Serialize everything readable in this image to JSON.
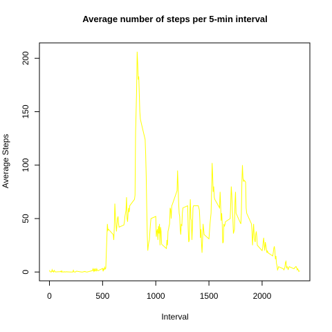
{
  "chart_data": {
    "type": "line",
    "title": "Average number of steps per 5-min interval",
    "x_label": "Interval",
    "y_label": "Average Steps",
    "x": [
      0,
      5,
      10,
      15,
      20,
      25,
      30,
      35,
      40,
      45,
      50,
      55,
      100,
      105,
      110,
      115,
      120,
      125,
      130,
      135,
      140,
      145,
      150,
      155,
      200,
      205,
      210,
      215,
      220,
      225,
      230,
      235,
      240,
      245,
      250,
      255,
      300,
      305,
      310,
      315,
      320,
      325,
      330,
      335,
      340,
      345,
      350,
      355,
      400,
      405,
      410,
      415,
      420,
      425,
      430,
      435,
      440,
      445,
      450,
      455,
      500,
      505,
      510,
      515,
      520,
      525,
      530,
      535,
      540,
      545,
      550,
      555,
      600,
      605,
      610,
      615,
      620,
      625,
      630,
      635,
      640,
      645,
      650,
      655,
      700,
      705,
      710,
      715,
      720,
      725,
      730,
      735,
      740,
      745,
      750,
      755,
      800,
      805,
      810,
      815,
      820,
      825,
      830,
      835,
      840,
      845,
      850,
      855,
      900,
      905,
      910,
      915,
      920,
      925,
      930,
      935,
      940,
      945,
      950,
      955,
      1000,
      1005,
      1010,
      1015,
      1020,
      1025,
      1030,
      1035,
      1040,
      1045,
      1050,
      1055,
      1100,
      1105,
      1110,
      1115,
      1120,
      1125,
      1130,
      1135,
      1140,
      1145,
      1150,
      1155,
      1200,
      1205,
      1210,
      1215,
      1220,
      1225,
      1230,
      1235,
      1240,
      1245,
      1250,
      1255,
      1300,
      1305,
      1310,
      1315,
      1320,
      1325,
      1330,
      1335,
      1340,
      1345,
      1350,
      1355,
      1400,
      1405,
      1410,
      1415,
      1420,
      1425,
      1430,
      1435,
      1440,
      1445,
      1450,
      1455,
      1500,
      1505,
      1510,
      1515,
      1520,
      1525,
      1530,
      1535,
      1540,
      1545,
      1550,
      1555,
      1600,
      1605,
      1610,
      1615,
      1620,
      1625,
      1630,
      1635,
      1640,
      1645,
      1650,
      1655,
      1700,
      1705,
      1710,
      1715,
      1720,
      1725,
      1730,
      1735,
      1740,
      1745,
      1750,
      1755,
      1800,
      1805,
      1810,
      1815,
      1820,
      1825,
      1830,
      1835,
      1840,
      1845,
      1850,
      1855,
      1900,
      1905,
      1910,
      1915,
      1920,
      1925,
      1930,
      1935,
      1940,
      1945,
      1950,
      1955,
      2000,
      2005,
      2010,
      2015,
      2020,
      2025,
      2030,
      2035,
      2040,
      2045,
      2050,
      2055,
      2100,
      2105,
      2110,
      2115,
      2120,
      2125,
      2130,
      2135,
      2140,
      2145,
      2150,
      2155,
      2200,
      2205,
      2210,
      2215,
      2220,
      2225,
      2230,
      2235,
      2240,
      2245,
      2250,
      2255,
      2300,
      2305,
      2310,
      2315,
      2320,
      2325,
      2330,
      2335,
      2340,
      2345,
      2350,
      2355
    ],
    "series": [
      {
        "name": "Average Steps",
        "color": "#ffff00",
        "values": [
          1.7,
          0.3,
          0.1,
          0.2,
          0.1,
          2.1,
          0.5,
          0.9,
          0,
          1.5,
          0.8,
          0.1,
          0.3,
          0.7,
          0,
          1.1,
          0,
          0.1,
          0,
          0,
          0.4,
          0,
          0,
          0.2,
          0,
          0,
          0,
          0,
          0,
          1.6,
          0.2,
          0,
          0.1,
          0,
          0.5,
          0.8,
          0,
          0,
          0,
          0,
          0.2,
          0.5,
          0.3,
          0.6,
          0.2,
          0.1,
          0,
          0,
          1.2,
          1.6,
          3,
          0.8,
          2.5,
          0.5,
          3.3,
          1.5,
          1,
          3,
          1.8,
          1.1,
          3.3,
          0.6,
          3,
          2.2,
          4.4,
          2.8,
          3.6,
          18,
          32,
          45,
          39,
          40,
          35,
          30,
          42,
          64,
          53,
          45,
          38,
          44,
          50,
          52,
          45,
          42,
          44,
          47,
          52,
          55,
          58,
          70,
          50,
          47,
          55,
          60,
          56,
          62,
          68,
          72,
          130,
          150,
          171,
          206.17,
          195,
          180,
          183,
          167,
          150,
          143,
          124,
          110,
          90,
          60,
          35,
          20,
          25,
          28,
          30,
          38,
          45,
          50,
          52,
          33,
          38,
          40,
          30,
          43,
          36,
          45,
          25,
          42,
          38,
          26,
          22,
          30,
          25,
          38,
          40,
          43,
          45,
          60,
          58,
          50,
          62,
          63,
          76,
          95,
          80,
          65,
          55,
          52,
          40,
          35,
          45,
          43,
          55,
          60,
          62,
          40,
          28,
          30,
          55,
          68,
          50,
          48,
          30,
          42,
          60,
          62,
          62,
          60,
          58,
          48,
          32,
          40,
          27,
          18,
          30,
          45,
          40,
          35,
          31,
          38,
          45,
          50,
          55,
          75,
          102,
          90,
          75,
          80,
          70,
          68,
          60,
          75,
          62,
          48,
          55,
          45,
          27,
          28,
          45,
          43,
          44,
          47,
          50,
          65,
          80,
          72,
          58,
          50,
          36,
          38,
          40,
          65,
          75,
          55,
          45,
          55,
          85,
          100,
          88,
          85,
          86,
          85,
          85,
          84,
          60,
          55,
          45,
          38,
          25,
          35,
          45,
          35,
          30,
          28,
          35,
          38,
          33,
          25,
          20,
          22,
          28,
          32,
          25,
          20,
          28,
          25,
          22,
          18,
          20,
          18,
          15,
          18,
          22,
          24,
          20,
          12,
          15,
          8,
          6,
          2,
          3,
          5,
          3,
          2,
          3,
          5,
          9,
          10,
          4,
          5,
          4,
          2,
          4,
          5,
          3,
          4,
          4,
          5,
          5,
          4,
          2,
          3,
          2,
          0.5,
          1,
          1
        ]
      }
    ],
    "xlim": [
      -94.2,
      2449.2
    ],
    "ylim": [
      -8.25,
      214.4
    ],
    "xticks": [
      0,
      500,
      1000,
      1500,
      2000
    ],
    "yticks": [
      0,
      50,
      100,
      150,
      200
    ]
  }
}
